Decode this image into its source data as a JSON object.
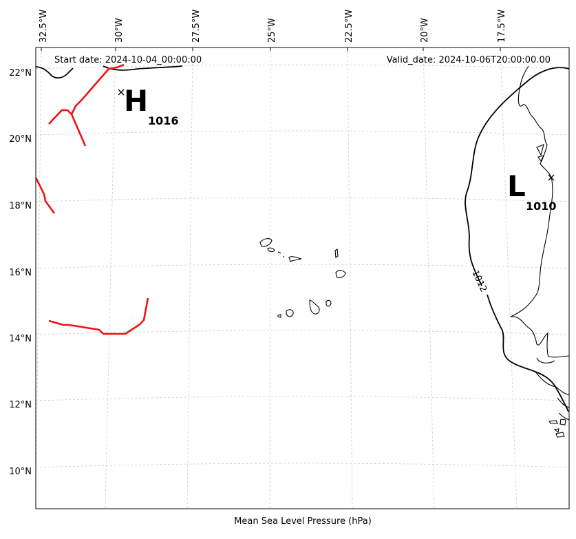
{
  "map": {
    "start_date": "Start date: 2024-10-04_00:00:00",
    "valid_date": "Valid_date: 2024-10-06T20:00:00.00",
    "caption": "Mean Sea Level Pressure (hPa)",
    "lon_labels": [
      "32.5°W",
      "30°W",
      "27.5°W",
      "25°W",
      "22.5°W",
      "20°W",
      "17.5°W"
    ],
    "lat_labels": [
      "22°N",
      "20°N",
      "18°N",
      "16°N",
      "14°N",
      "12°N",
      "10°N"
    ],
    "high": {
      "letter": "H",
      "value": "1016"
    },
    "low": {
      "letter": "L",
      "value": "1010"
    },
    "isobar_label": "1012",
    "colors": {
      "front": "#ee1111",
      "isobar": "#000000",
      "grid": "#cccccc"
    }
  }
}
